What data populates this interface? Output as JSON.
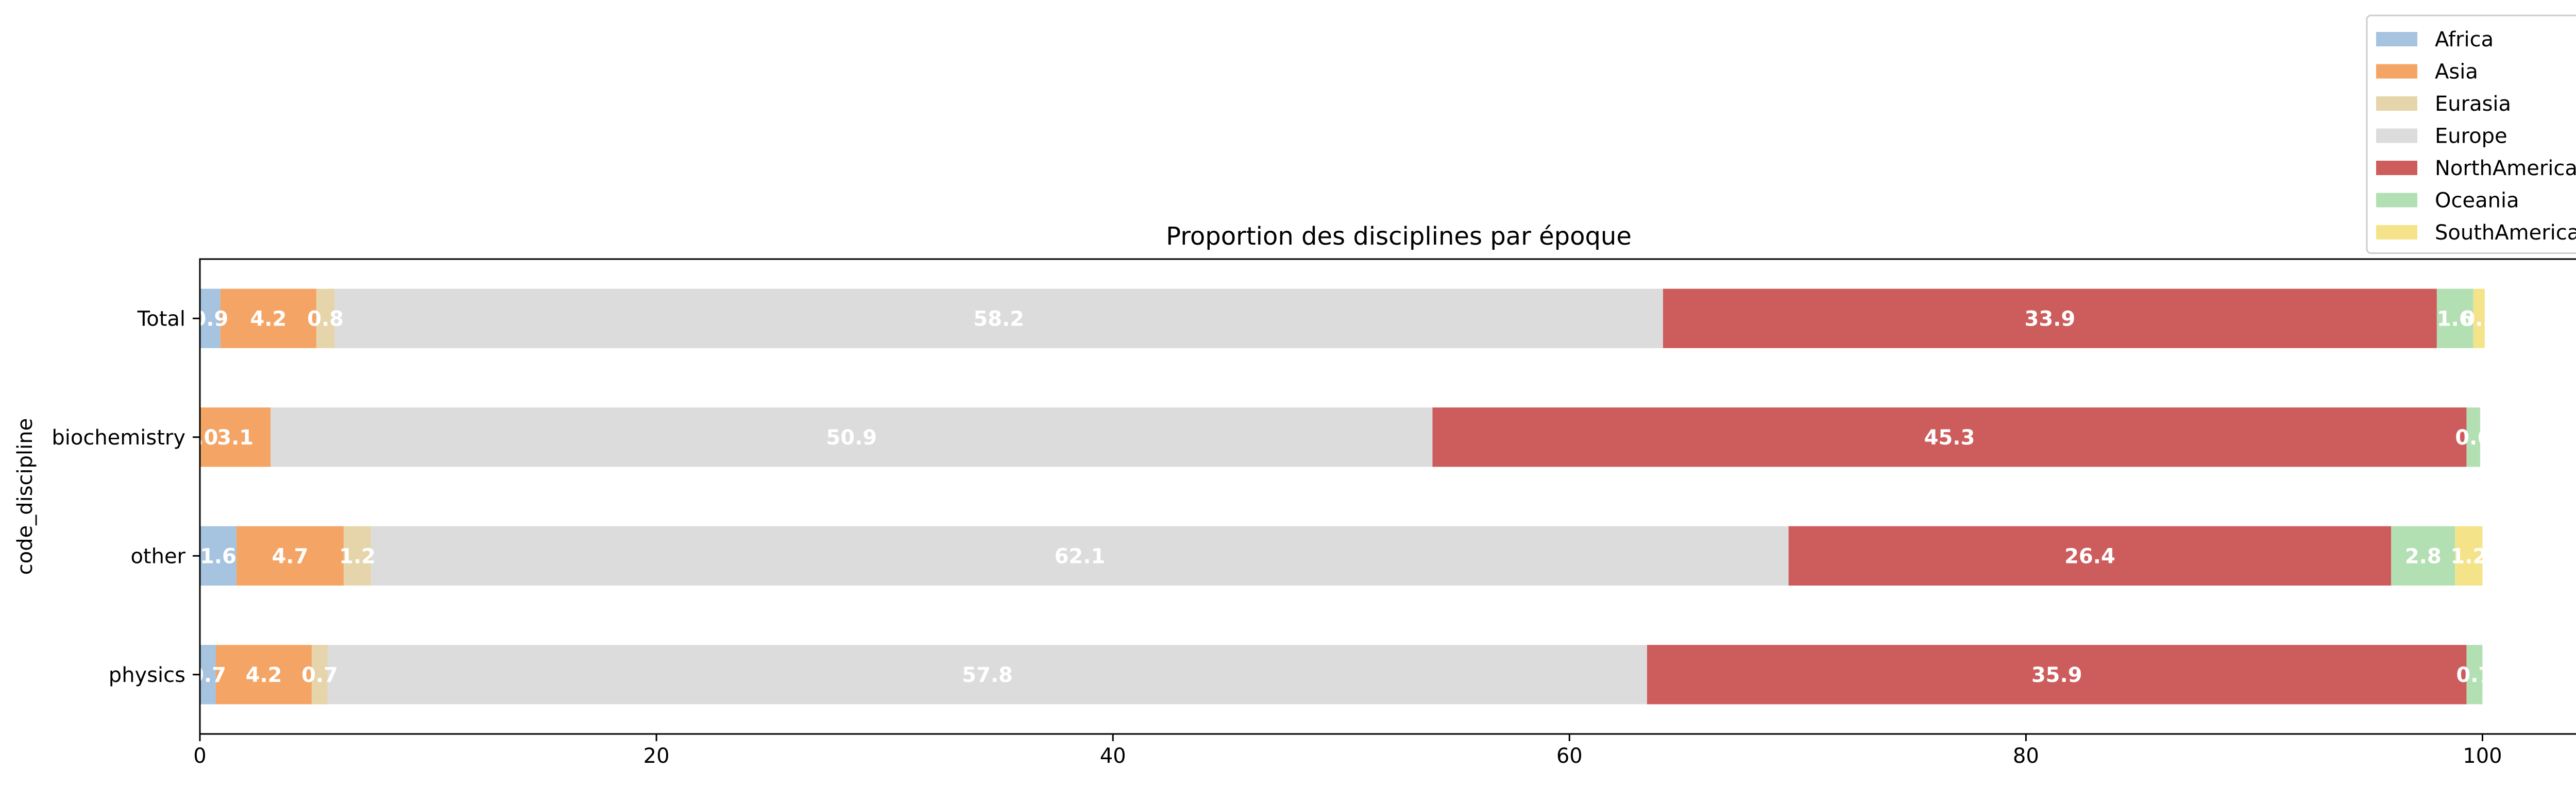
{
  "chart_data": {
    "type": "bar",
    "orientation": "horizontal",
    "stacked": true,
    "title": "Proportion des disciplines par époque",
    "xlabel": "",
    "ylabel": "code_discipline",
    "xlim": [
      0,
      105
    ],
    "xticks": [
      0,
      20,
      40,
      60,
      80,
      100
    ],
    "grid": false,
    "legend_position": "top-right",
    "categories": [
      "Total",
      "biochemistry",
      "other",
      "physics"
    ],
    "series": [
      {
        "name": "Africa",
        "color": "#a6c3df",
        "values": [
          0.9,
          0.0,
          1.6,
          0.7
        ],
        "labels": [
          "0.9",
          "0.0",
          "1.6",
          "0.7"
        ]
      },
      {
        "name": "Asia",
        "color": "#f4a566",
        "values": [
          4.2,
          3.1,
          4.7,
          4.2
        ],
        "labels": [
          "4.2",
          "3.1",
          "4.7",
          "4.2"
        ]
      },
      {
        "name": "Eurasia",
        "color": "#e6d5aa",
        "values": [
          0.8,
          0.0,
          1.2,
          0.7
        ],
        "labels": [
          "0.8",
          "",
          "1.2",
          "0.7"
        ]
      },
      {
        "name": "Europe",
        "color": "#dcdcdc",
        "values": [
          58.2,
          50.9,
          62.1,
          57.8
        ],
        "labels": [
          "58.2",
          "50.9",
          "62.1",
          "57.8"
        ]
      },
      {
        "name": "NorthAmerica",
        "color": "#cd5c5c",
        "values": [
          33.9,
          45.3,
          26.4,
          35.9
        ],
        "labels": [
          "33.9",
          "45.3",
          "26.4",
          "35.9"
        ]
      },
      {
        "name": "Oceania",
        "color": "#b3e0b3",
        "values": [
          1.6,
          0.6,
          2.8,
          0.7
        ],
        "labels": [
          "1.6",
          "0.6",
          "2.8",
          "0.7"
        ]
      },
      {
        "name": "SouthAmerica",
        "color": "#f5e38a",
        "values": [
          0.5,
          0.0,
          1.2,
          0.0
        ],
        "labels": [
          "0.5",
          "",
          "1.2",
          ""
        ]
      }
    ]
  }
}
